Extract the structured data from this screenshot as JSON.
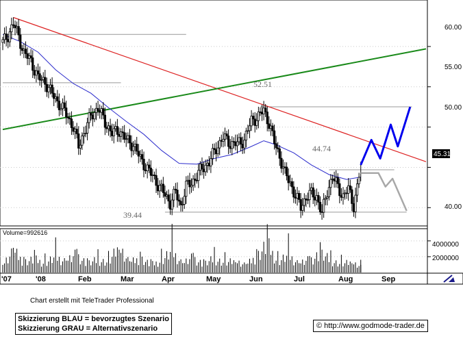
{
  "colors": {
    "price": "#000000",
    "ma": "#2b2bcc",
    "downtrend": "#dd2222",
    "uptrend": "#1a8a1a",
    "preferred": "#0000ee",
    "alternative": "#a8a8a8",
    "hline": "#999999",
    "grid": "#c8c8c8",
    "price_tag_bg": "#000000",
    "price_tag_fg": "#ffffff"
  },
  "chart_data": {
    "type": "candlestick",
    "price_axis": {
      "ticks": [
        40,
        45,
        50,
        55,
        60
      ],
      "labels": [
        "40.00",
        "",
        "50.00",
        "55.00",
        "60.00"
      ],
      "range": [
        37.9,
        65.6
      ]
    },
    "volume_axis": {
      "ticks": [
        2000000,
        4000000
      ],
      "labels": [
        "2000000",
        "4000000"
      ],
      "range": [
        0,
        5200000
      ]
    },
    "x_axis": {
      "labels": [
        "'07",
        "'08",
        "Feb",
        "Mar",
        "Apr",
        "May",
        "Jun",
        "Jul",
        "Aug",
        "Sep"
      ]
    },
    "volume_label": "Volume=992616",
    "last_price": "45.31",
    "annotations": [
      {
        "text": "52.51",
        "value": 52.51
      },
      {
        "text": "44.74",
        "value": 44.74
      },
      {
        "text": "39.44",
        "value": 39.44
      }
    ],
    "price_series": [
      {
        "x": 0,
        "y": 60.5
      },
      {
        "x": 3,
        "y": 61.4
      },
      {
        "x": 6,
        "y": 62.8
      },
      {
        "x": 9,
        "y": 61.3
      },
      {
        "x": 12,
        "y": 59.2
      },
      {
        "x": 16,
        "y": 58.2
      },
      {
        "x": 20,
        "y": 56.1
      },
      {
        "x": 24,
        "y": 55.6
      },
      {
        "x": 28,
        "y": 54.1
      },
      {
        "x": 32,
        "y": 52.9
      },
      {
        "x": 36,
        "y": 51.6
      },
      {
        "x": 40,
        "y": 50.0
      },
      {
        "x": 43,
        "y": 47.6
      },
      {
        "x": 46,
        "y": 49.3
      },
      {
        "x": 50,
        "y": 51.4
      },
      {
        "x": 54,
        "y": 52.4
      },
      {
        "x": 58,
        "y": 50.6
      },
      {
        "x": 62,
        "y": 49.2
      },
      {
        "x": 66,
        "y": 49.6
      },
      {
        "x": 70,
        "y": 48.4
      },
      {
        "x": 74,
        "y": 47.8
      },
      {
        "x": 78,
        "y": 46.1
      },
      {
        "x": 82,
        "y": 44.8
      },
      {
        "x": 86,
        "y": 43.6
      },
      {
        "x": 89,
        "y": 42.5
      },
      {
        "x": 92,
        "y": 41.6
      },
      {
        "x": 95,
        "y": 40.6
      },
      {
        "x": 98,
        "y": 41.9
      },
      {
        "x": 101,
        "y": 40.2
      },
      {
        "x": 104,
        "y": 42.6
      },
      {
        "x": 107,
        "y": 43.1
      },
      {
        "x": 110,
        "y": 43.9
      },
      {
        "x": 113,
        "y": 44.9
      },
      {
        "x": 117,
        "y": 45.6
      },
      {
        "x": 121,
        "y": 47.4
      },
      {
        "x": 125,
        "y": 48.7
      },
      {
        "x": 129,
        "y": 48.0
      },
      {
        "x": 133,
        "y": 47.9
      },
      {
        "x": 137,
        "y": 48.4
      },
      {
        "x": 141,
        "y": 50.8
      },
      {
        "x": 145,
        "y": 51.3
      },
      {
        "x": 148,
        "y": 52.1
      },
      {
        "x": 151,
        "y": 50.5
      },
      {
        "x": 154,
        "y": 48.1
      },
      {
        "x": 157,
        "y": 46.4
      },
      {
        "x": 160,
        "y": 44.2
      },
      {
        "x": 163,
        "y": 43.1
      },
      {
        "x": 166,
        "y": 41.4
      },
      {
        "x": 169,
        "y": 40.1
      },
      {
        "x": 172,
        "y": 41.3
      },
      {
        "x": 175,
        "y": 41.7
      },
      {
        "x": 178,
        "y": 41.4
      },
      {
        "x": 181,
        "y": 39.2
      },
      {
        "x": 184,
        "y": 42.1
      },
      {
        "x": 187,
        "y": 43.8
      },
      {
        "x": 190,
        "y": 42.6
      },
      {
        "x": 193,
        "y": 41.4
      },
      {
        "x": 196,
        "y": 42.3
      },
      {
        "x": 199,
        "y": 40.3
      },
      {
        "x": 201,
        "y": 42.5
      },
      {
        "x": 203,
        "y": 45.3
      }
    ],
    "moving_average": [
      {
        "x": 0,
        "y": 61.5
      },
      {
        "x": 10,
        "y": 60.6
      },
      {
        "x": 20,
        "y": 59.3
      },
      {
        "x": 30,
        "y": 57.1
      },
      {
        "x": 40,
        "y": 55.4
      },
      {
        "x": 50,
        "y": 54.2
      },
      {
        "x": 60,
        "y": 52.4
      },
      {
        "x": 70,
        "y": 50.7
      },
      {
        "x": 80,
        "y": 49.1
      },
      {
        "x": 90,
        "y": 47.1
      },
      {
        "x": 100,
        "y": 45.5
      },
      {
        "x": 110,
        "y": 45.4
      },
      {
        "x": 120,
        "y": 46.1
      },
      {
        "x": 130,
        "y": 46.6
      },
      {
        "x": 140,
        "y": 47.5
      },
      {
        "x": 148,
        "y": 48.3
      },
      {
        "x": 155,
        "y": 47.8
      },
      {
        "x": 165,
        "y": 46.8
      },
      {
        "x": 175,
        "y": 45.3
      },
      {
        "x": 185,
        "y": 44.1
      },
      {
        "x": 195,
        "y": 43.5
      },
      {
        "x": 203,
        "y": 43.8
      }
    ],
    "downtrend_line": [
      {
        "x": 6,
        "y": 63.6
      },
      {
        "x": 240,
        "y": 45.7
      }
    ],
    "uptrend_line": [
      {
        "x": 0,
        "y": 49.7
      },
      {
        "x": 240,
        "y": 59.7
      }
    ],
    "horizontal_lines": [
      {
        "from": 0,
        "to": 104,
        "y": 61.5
      },
      {
        "from": 0,
        "to": 67,
        "y": 55.5
      },
      {
        "from": 146,
        "to": 232,
        "y": 52.51
      },
      {
        "from": 185,
        "to": 222,
        "y": 44.7
      },
      {
        "from": 92,
        "to": 229,
        "y": 39.44
      }
    ],
    "preferred_scenario": [
      {
        "x": 203,
        "y": 45.3
      },
      {
        "x": 209,
        "y": 48.4
      },
      {
        "x": 214,
        "y": 46.1
      },
      {
        "x": 220,
        "y": 50.3
      },
      {
        "x": 224,
        "y": 47.6
      },
      {
        "x": 231,
        "y": 52.5
      }
    ],
    "alternative_scenario": [
      {
        "x": 203,
        "y": 44.3
      },
      {
        "x": 213,
        "y": 44.3
      },
      {
        "x": 217,
        "y": 42.6
      },
      {
        "x": 221,
        "y": 43.6
      },
      {
        "x": 229,
        "y": 39.6
      }
    ],
    "volume_series": [
      {
        "x": 0,
        "y": 1400000
      },
      {
        "x": 6,
        "y": 3500000
      },
      {
        "x": 12,
        "y": 1800000
      },
      {
        "x": 18,
        "y": 2200000
      },
      {
        "x": 24,
        "y": 1600000
      },
      {
        "x": 30,
        "y": 2600000
      },
      {
        "x": 36,
        "y": 1900000
      },
      {
        "x": 42,
        "y": 3000000
      },
      {
        "x": 48,
        "y": 1500000
      },
      {
        "x": 54,
        "y": 2100000
      },
      {
        "x": 60,
        "y": 1700000
      },
      {
        "x": 66,
        "y": 4200000
      },
      {
        "x": 72,
        "y": 1600000
      },
      {
        "x": 78,
        "y": 2400000
      },
      {
        "x": 84,
        "y": 1300000
      },
      {
        "x": 90,
        "y": 2000000
      },
      {
        "x": 96,
        "y": 3600000
      },
      {
        "x": 102,
        "y": 1500000
      },
      {
        "x": 108,
        "y": 2500000
      },
      {
        "x": 114,
        "y": 1400000
      },
      {
        "x": 120,
        "y": 2300000
      },
      {
        "x": 126,
        "y": 1600000
      },
      {
        "x": 132,
        "y": 1900000
      },
      {
        "x": 138,
        "y": 1200000
      },
      {
        "x": 144,
        "y": 2700000
      },
      {
        "x": 150,
        "y": 4700000
      },
      {
        "x": 156,
        "y": 1800000
      },
      {
        "x": 162,
        "y": 2900000
      },
      {
        "x": 168,
        "y": 1500000
      },
      {
        "x": 174,
        "y": 2100000
      },
      {
        "x": 180,
        "y": 3200000
      },
      {
        "x": 186,
        "y": 2000000
      },
      {
        "x": 192,
        "y": 1400000
      },
      {
        "x": 198,
        "y": 1700000
      },
      {
        "x": 203,
        "y": 1000000
      }
    ]
  },
  "footer": {
    "credit": "Chart erstellt mit TeleTrader Professional",
    "legend_blue": "Skizzierung BLAU = bevorzugtes Szenario",
    "legend_grey": "Skizzierung GRAU = Alternativszenario",
    "copyright": "© http://www.godmode-trader.de"
  }
}
